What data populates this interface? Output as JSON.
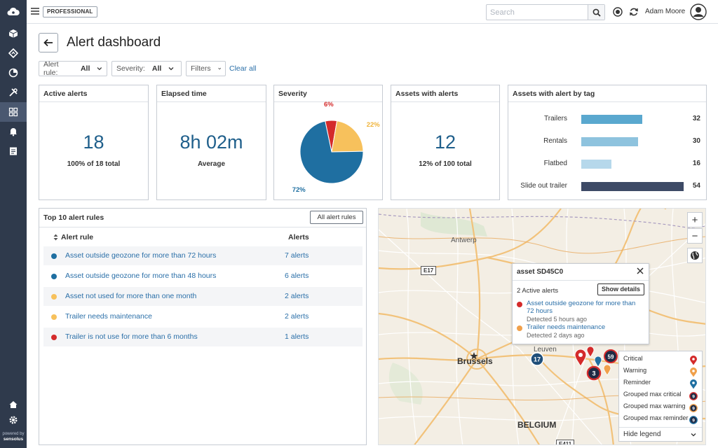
{
  "topbar": {
    "badge": "PROFESSIONAL",
    "search_placeholder": "Search",
    "user_name": "Adam Moore"
  },
  "sidebar": {
    "items": [
      {
        "name": "cube-icon"
      },
      {
        "name": "route-icon"
      },
      {
        "name": "pie-chart-icon"
      },
      {
        "name": "tools-icon"
      },
      {
        "name": "dashboard-icon",
        "active": true
      },
      {
        "name": "bell-icon"
      },
      {
        "name": "report-icon"
      }
    ],
    "powered_by": "powered by",
    "powered_brand": "sensolus"
  },
  "header": {
    "title": "Alert dashboard"
  },
  "filters": {
    "alert_rule_label": "Alert rule:",
    "alert_rule_value": "All",
    "severity_label": "Severity:",
    "severity_value": "All",
    "filters_label": "Filters",
    "clear_all": "Clear all"
  },
  "cards": {
    "active_alerts": {
      "title": "Active alerts",
      "value": "18",
      "sub": "100% of 18 total"
    },
    "elapsed_time": {
      "title": "Elapsed time",
      "value": "8h 02m",
      "sub": "Average"
    },
    "severity": {
      "title": "Severity"
    },
    "assets_with_alerts": {
      "title": "Assets with alerts",
      "value": "12",
      "sub": "12% of 100 total"
    },
    "assets_by_tag": {
      "title": "Assets with alert by tag"
    }
  },
  "chart_data": [
    {
      "type": "pie",
      "title": "Severity",
      "slices": [
        {
          "label": "72%",
          "value": 72,
          "color": "#1f6fa1"
        },
        {
          "label": "6%",
          "value": 6,
          "color": "#d42b2b"
        },
        {
          "label": "22%",
          "value": 22,
          "color": "#f7c15c"
        }
      ]
    },
    {
      "type": "bar",
      "title": "Assets with alert by tag",
      "categories": [
        "Trailers",
        "Rentals",
        "Flatbed",
        "Slide out trailer"
      ],
      "values": [
        32,
        30,
        16,
        54
      ],
      "colors": [
        "#5aa8cf",
        "#8ec3de",
        "#b6d8eb",
        "#3d4a66"
      ]
    }
  ],
  "top_rules": {
    "title": "Top 10 alert rules",
    "button": "All alert rules",
    "col_rule": "Alert rule",
    "col_alerts": "Alerts",
    "rows": [
      {
        "name": "Asset outside geozone for more than 72 hours",
        "count": "7 alerts",
        "color": "#1f6fa1"
      },
      {
        "name": "Asset outside geozone for more than 48 hours",
        "count": "6 alerts",
        "color": "#1f6fa1"
      },
      {
        "name": "Asset not used for more than one month",
        "count": "2 alerts",
        "color": "#f7c15c"
      },
      {
        "name": "Trailer needs maintenance",
        "count": "2 alerts",
        "color": "#f7c15c"
      },
      {
        "name": "Trailer is not use for more than 6 months",
        "count": "1 alerts",
        "color": "#d42b2b"
      }
    ]
  },
  "map": {
    "places": {
      "antwerp": "Antwerp",
      "brussels": "Brussels",
      "leuven": "Leuven",
      "belgium": "BELGIUM"
    },
    "roads": {
      "e17": "E17",
      "e411": "E411"
    },
    "clusters": {
      "c17": "17",
      "c59": "59",
      "c3": "3"
    },
    "popup": {
      "title": "asset SD45C0",
      "count": "2 Active alerts",
      "button": "Show details",
      "alerts": [
        {
          "text": "Asset outside geozone for more than 72 hours",
          "detected": "Detected 5 hours ago",
          "color": "#d42b2b"
        },
        {
          "text": "Trailer needs maintenance",
          "detected": "Detected 2 days ago",
          "color": "#f0a04b"
        }
      ]
    },
    "legend": {
      "items": [
        {
          "label": "Critical",
          "icon": "critical-pin-icon",
          "color": "#d42b2b"
        },
        {
          "label": "Warning",
          "icon": "warning-pin-icon",
          "color": "#f0a04b"
        },
        {
          "label": "Reminder",
          "icon": "reminder-pin-icon",
          "color": "#1f6fa1"
        },
        {
          "label": "Grouped max critical",
          "icon": "grouped-critical-icon",
          "color": "#d42b2b"
        },
        {
          "label": "Grouped max warning",
          "icon": "grouped-warning-icon",
          "color": "#f0a04b"
        },
        {
          "label": "Grouped max reminder",
          "icon": "grouped-reminder-icon",
          "color": "#1f6fa1"
        }
      ],
      "footer": "Hide legend",
      "group_count": "9"
    }
  }
}
